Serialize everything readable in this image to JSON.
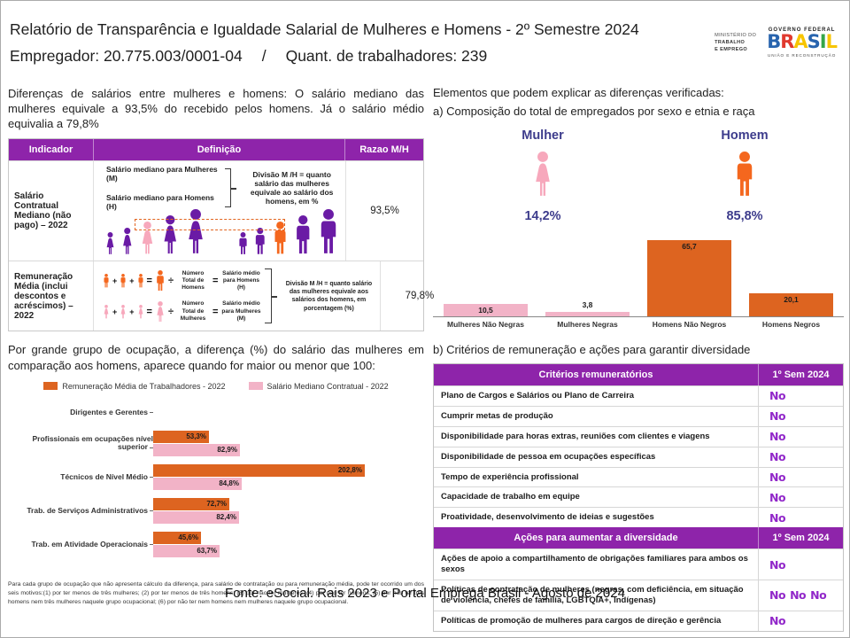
{
  "header": {
    "title": "Relatório de Transparência e Igualdade Salarial de Mulheres e Homens - 2º Semestre 2024",
    "employer": "Empregador: 20.775.003/0001-04",
    "separator": "/",
    "workers": "Quant. de trabalhadores: 239",
    "logo": {
      "ministry": [
        "MINISTÉRIO DO",
        "TRABALHO",
        "E EMPREGO"
      ],
      "governo": "GOVERNO FEDERAL",
      "brasil": "BRASIL",
      "brasil_colors": [
        "#2864AE",
        "#E03A2F",
        "#F7C500",
        "#2864AE",
        "#35A648",
        "#F7C500"
      ],
      "tagline": "UNIÃO E RECONSTRUÇÃO"
    }
  },
  "left": {
    "intro": "Diferenças de salários entre mulheres e homens: O salário mediano das mulheres equivale a 93,5% do recebido pelos homens. Já o salário médio equivalia a 79,8%",
    "table": {
      "headers": [
        "Indicador",
        "Definição",
        "Razao M/H"
      ],
      "rows": [
        {
          "indicator": "Salário Contratual Mediano (não pago) – 2022",
          "def_line1": "Salário mediano para Mulheres (M)",
          "def_line2": "Salário mediano para Homens (H)",
          "def_explainer": "Divisão M /H = quanto salário das mulheres equivale ao salário dos homens, em %",
          "ratio": "93,5%"
        },
        {
          "indicator": "Remuneração Média (inclui descontos e acréscimos) – 2022",
          "men_divisor": "Número Total de Homens",
          "men_result": "Salário médio para Homens (H)",
          "women_divisor": "Número Total de Mulheres",
          "women_result": "Salário médio para Mulheres (M)",
          "def_explainer": "Divisão M /H = quanto salário das mulheres equivale aos salários dos homens, em porcentagem (%)",
          "ratio": "79,8%"
        }
      ]
    },
    "occupation_intro": "Por grande grupo de ocupação, a diferença (%) do salário das mulheres em comparação aos homens, aparece quando for maior ou menor que 100:",
    "footnote": "Para cada grupo de ocupação que não apresenta cálculo da diferença, para salário de contratação ou para remuneração média, pode ter ocorrido um dos seis motivos:(1) por ter menos de três mulheres; (2) por ter menos de três homens; (3) por não ter mulheres; (4) por não ter homens; (5) por não ter três homens nem três mulheres naquele grupo ocupacional; (6) por não ter nem homens nem mulheres naquele grupo ocupacional."
  },
  "right": {
    "elements_title": "Elementos que podem explicar as diferenças verificadas:",
    "section_a": "a) Composição do total de empregados por sexo e etnia e raça",
    "mulher": {
      "label": "Mulher",
      "pct": "14,2%"
    },
    "homem": {
      "label": "Homem",
      "pct": "85,8%"
    },
    "section_b": "b) Critérios de remuneração e ações para garantir diversidade",
    "criteria": {
      "header1": "Critérios remuneratórios",
      "period1": "1º Sem 2024",
      "rows1": [
        {
          "label": "Plano de Cargos e Salários ou Plano de Carreira",
          "status": "No",
          "count": 1
        },
        {
          "label": "Cumprir metas de produção",
          "status": "No",
          "count": 1
        },
        {
          "label": "Disponibilidade para horas extras, reuniões com clientes e viagens",
          "status": "No",
          "count": 1
        },
        {
          "label": "Disponibilidade de pessoa em ocupações específicas",
          "status": "No",
          "count": 1
        },
        {
          "label": "Tempo de experiência profissional",
          "status": "No",
          "count": 1
        },
        {
          "label": "Capacidade de trabalho em equipe",
          "status": "No",
          "count": 1
        },
        {
          "label": "Proatividade, desenvolvimento de ideias e sugestões",
          "status": "No",
          "count": 1
        }
      ],
      "header2": "Ações para aumentar a diversidade",
      "period2": "1º Sem 2024",
      "rows2": [
        {
          "label": "Ações de apoio a compartilhamento de obrigações familiares para ambos os sexos",
          "status": "No",
          "count": 1
        },
        {
          "label": "Políticas de contratação de mulheres (negras, com deficiência, em situação de violência, chefes de família, LGBTQIA+, Indígenas)",
          "status": "No",
          "count": 3
        },
        {
          "label": "Políticas de promoção de mulheres para cargos de direção e gerência",
          "status": "No",
          "count": 1
        }
      ]
    }
  },
  "footer": {
    "text": "Fonte: eSocial. Rais 2023 e Portal Emprega Brasil - Agosto de 2024"
  },
  "colors": {
    "header_purple": "#8E24AA",
    "person_purple": "#6A1BA5",
    "person_pink": "#F7A8BC",
    "person_orange": "#F4671E",
    "bar_pink": "#F2B3C7",
    "bar_orange": "#DD6420",
    "indigo_label": "#3D3C8C",
    "no_icon_purple": "#9127C9"
  },
  "chart_data": [
    {
      "type": "bar",
      "title": "a) Composição do total de empregados por sexo e etnia e raça",
      "categories": [
        "Mulheres Não Negras",
        "Mulheres Negras",
        "Homens Não Negros",
        "Homens Negros"
      ],
      "values": [
        10.5,
        3.8,
        65.7,
        20.1
      ],
      "labels": [
        "10,5",
        "3,8",
        "65,7",
        "20,1"
      ],
      "colors": [
        "#F2B3C7",
        "#F2B3C7",
        "#DD6420",
        "#DD6420"
      ],
      "xlabel": "",
      "ylabel": "",
      "ylim": [
        0,
        70
      ],
      "grid": false,
      "legend": false
    },
    {
      "type": "bar",
      "orientation": "horizontal",
      "title": "Diferença (%) do salário das mulheres em comparação aos homens, por grande grupo de ocupação",
      "categories": [
        "Dirigentes e Gerentes",
        "Profissionais em ocupações nível superior",
        "Técnicos de Nível Médio",
        "Trab. de Serviços Administrativos",
        "Trab. em Atividade Operacionais"
      ],
      "series": [
        {
          "name": "Remuneração Média de Trabalhadores - 2022",
          "color": "#DD6420",
          "values": [
            null,
            53.3,
            202.8,
            72.7,
            45.6
          ],
          "labels": [
            "",
            "53,3%",
            "202,8%",
            "72,7%",
            "45,6%"
          ]
        },
        {
          "name": "Salário Mediano Contratual - 2022",
          "color": "#F2B3C7",
          "values": [
            null,
            82.9,
            84.8,
            82.4,
            63.7
          ],
          "labels": [
            "",
            "82,9%",
            "84,8%",
            "82,4%",
            "63,7%"
          ]
        }
      ],
      "xlim": [
        0,
        210
      ],
      "grid": false,
      "legend": true,
      "legend_position": "top"
    }
  ]
}
